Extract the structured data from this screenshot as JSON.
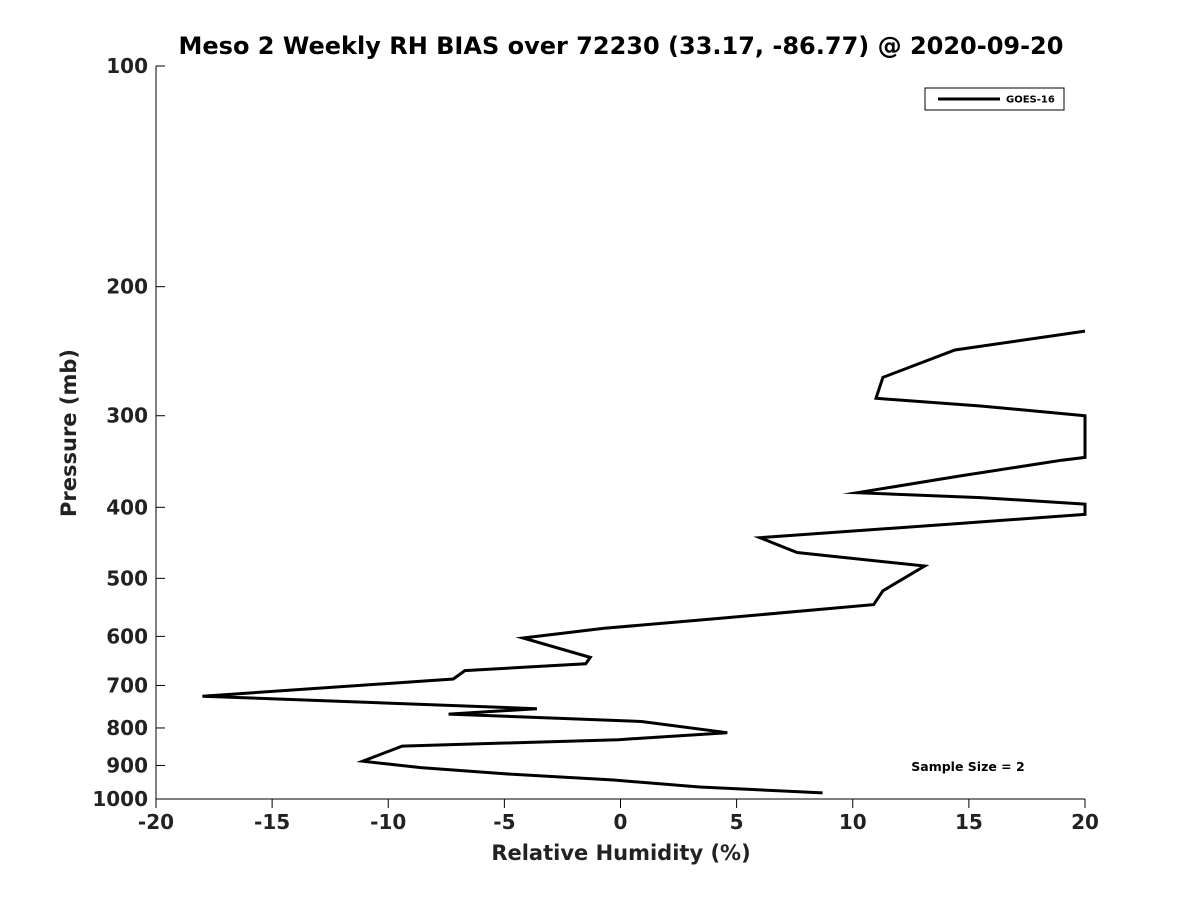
{
  "chart_data": {
    "type": "line",
    "title": "Meso 2 Weekly RH BIAS over 72230 (33.17, -86.77) @ 2020-09-20",
    "xlabel": "Relative Humidity (%)",
    "ylabel": "Pressure (mb)",
    "xlim": [
      -20,
      20
    ],
    "ylim": [
      1000,
      100
    ],
    "y_scale": "log",
    "x_ticks": [
      -20,
      -15,
      -10,
      -5,
      0,
      5,
      10,
      15,
      20
    ],
    "y_ticks": [
      100,
      200,
      300,
      400,
      500,
      600,
      700,
      800,
      900,
      1000
    ],
    "grid": false,
    "legend": {
      "position": "top-right",
      "entries": [
        "GOES-16"
      ]
    },
    "series": [
      {
        "name": "GOES-16",
        "color": "#000000",
        "points": [
          [
            20,
            230
          ],
          [
            14.4,
            244
          ],
          [
            11.3,
            266
          ],
          [
            11.0,
            284
          ],
          [
            15.5,
            291
          ],
          [
            20,
            300
          ],
          [
            20,
            342
          ],
          [
            19.0,
            345
          ],
          [
            14.5,
            363
          ],
          [
            10.2,
            382
          ],
          [
            15.5,
            388
          ],
          [
            20,
            396
          ],
          [
            20,
            409
          ],
          [
            14.5,
            421
          ],
          [
            6.0,
            440
          ],
          [
            7.6,
            461
          ],
          [
            13.1,
            481
          ],
          [
            11.3,
            520
          ],
          [
            10.9,
            543
          ],
          [
            4.0,
            568
          ],
          [
            -0.7,
            585
          ],
          [
            -4.2,
            603
          ],
          [
            -1.3,
            641
          ],
          [
            -1.5,
            654
          ],
          [
            -6.7,
            668
          ],
          [
            -7.2,
            686
          ],
          [
            -18.0,
            724
          ],
          [
            -3.6,
            753
          ],
          [
            -7.4,
            766
          ],
          [
            0.9,
            784
          ],
          [
            4.6,
            812
          ],
          [
            -0.1,
            830
          ],
          [
            -9.4,
            847
          ],
          [
            -11.1,
            888
          ],
          [
            -8.6,
            906
          ],
          [
            -5.0,
            924
          ],
          [
            -0.3,
            942
          ],
          [
            3.4,
            963
          ],
          [
            8.7,
            981
          ]
        ]
      }
    ],
    "annotations": [
      "Sample Size = 2"
    ]
  }
}
